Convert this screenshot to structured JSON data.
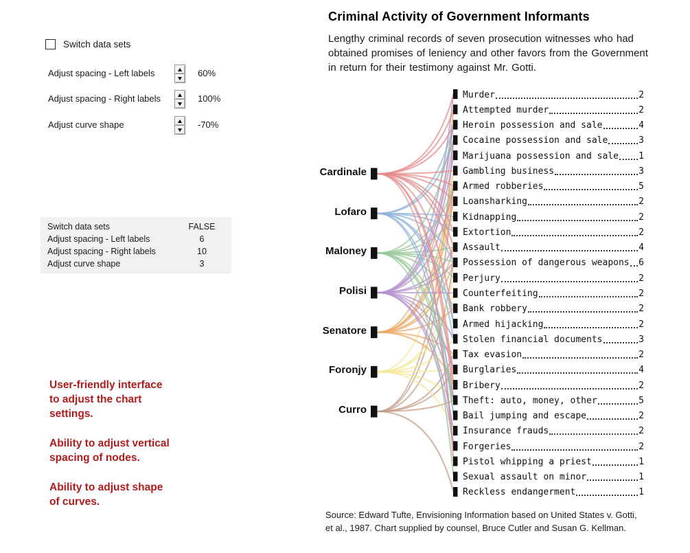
{
  "title": "Criminal Activity of Government Informants",
  "subtitle": "Lengthy criminal records of seven prosecution witnesses who had obtained promises of leniency and other favors from the Government in return for their testimony against Mr. Gotti.",
  "source_lines": [
    "Source: Edward Tufte, Envisioning Information based on United States v. Gotti,",
    "et al., 1987. Chart supplied by counsel, Bruce Cutler and Susan G. Kellman."
  ],
  "controls": {
    "checkbox_label": "Switch data sets",
    "checkbox_checked": false,
    "spinners": [
      {
        "label": "Adjust spacing - Left labels",
        "value": "60%"
      },
      {
        "label": "Adjust spacing - Right labels",
        "value": "100%"
      },
      {
        "label": "Adjust curve shape",
        "value": "-70%"
      }
    ]
  },
  "settings_table": {
    "rows": [
      {
        "label": "Switch data sets",
        "value": "FALSE"
      },
      {
        "label": "Adjust spacing - Left labels",
        "value": "6"
      },
      {
        "label": "Adjust spacing - Right labels",
        "value": "10"
      },
      {
        "label": "Adjust curve shape",
        "value": "3"
      }
    ]
  },
  "annotations": [
    "User-friendly interface to adjust the chart settings.",
    "Ability to adjust vertical spacing of nodes.",
    "Ability to adjust shape of curves."
  ],
  "chart_data": {
    "type": "bipartite-flow",
    "title": "Criminal Activity of Government Informants",
    "node_marker_color": "#111111",
    "witnesses": [
      {
        "name": "Cardinale",
        "color": "#e68989"
      },
      {
        "name": "Lofaro",
        "color": "#8fb4d9"
      },
      {
        "name": "Maloney",
        "color": "#98c897"
      },
      {
        "name": "Polisi",
        "color": "#b492cf"
      },
      {
        "name": "Senatore",
        "color": "#eda967"
      },
      {
        "name": "Foronjy",
        "color": "#f4e795"
      },
      {
        "name": "Curro",
        "color": "#c29b85"
      }
    ],
    "crimes": [
      {
        "name": "Murder",
        "count": 2,
        "witnesses": [
          "Cardinale",
          "Polisi"
        ]
      },
      {
        "name": "Attempted murder",
        "count": 2,
        "witnesses": [
          "Cardinale",
          "Senatore"
        ]
      },
      {
        "name": "Heroin possession and sale",
        "count": 4,
        "witnesses": [
          "Cardinale",
          "Lofaro",
          "Maloney",
          "Polisi"
        ]
      },
      {
        "name": "Cocaine possession and sale",
        "count": 3,
        "witnesses": [
          "Lofaro",
          "Polisi",
          "Curro"
        ]
      },
      {
        "name": "Marijuana possession and sale",
        "count": 1,
        "witnesses": [
          "Polisi"
        ]
      },
      {
        "name": "Gambling business",
        "count": 3,
        "witnesses": [
          "Cardinale",
          "Senatore",
          "Foronjy"
        ]
      },
      {
        "name": "Armed robberies",
        "count": 5,
        "witnesses": [
          "Cardinale",
          "Maloney",
          "Polisi",
          "Senatore",
          "Curro"
        ]
      },
      {
        "name": "Loansharking",
        "count": 2,
        "witnesses": [
          "Cardinale",
          "Senatore"
        ]
      },
      {
        "name": "Kidnapping",
        "count": 2,
        "witnesses": [
          "Lofaro",
          "Maloney"
        ]
      },
      {
        "name": "Extortion",
        "count": 2,
        "witnesses": [
          "Cardinale",
          "Lofaro"
        ]
      },
      {
        "name": "Assault",
        "count": 4,
        "witnesses": [
          "Cardinale",
          "Maloney",
          "Polisi",
          "Senatore"
        ]
      },
      {
        "name": "Possession of dangerous weapons",
        "count": 6,
        "witnesses": [
          "Cardinale",
          "Lofaro",
          "Maloney",
          "Polisi",
          "Senatore",
          "Curro"
        ]
      },
      {
        "name": "Perjury",
        "count": 2,
        "witnesses": [
          "Maloney",
          "Foronjy"
        ]
      },
      {
        "name": "Counterfeiting",
        "count": 2,
        "witnesses": [
          "Polisi",
          "Foronjy"
        ]
      },
      {
        "name": "Bank robbery",
        "count": 2,
        "witnesses": [
          "Maloney",
          "Senatore"
        ]
      },
      {
        "name": "Armed hijacking",
        "count": 2,
        "witnesses": [
          "Cardinale",
          "Lofaro"
        ]
      },
      {
        "name": "Stolen financial documents",
        "count": 3,
        "witnesses": [
          "Lofaro",
          "Polisi",
          "Foronjy"
        ]
      },
      {
        "name": "Tax evasion",
        "count": 2,
        "witnesses": [
          "Senatore",
          "Curro"
        ]
      },
      {
        "name": "Burglaries",
        "count": 4,
        "witnesses": [
          "Maloney",
          "Polisi",
          "Foronjy",
          "Curro"
        ]
      },
      {
        "name": "Bribery",
        "count": 2,
        "witnesses": [
          "Cardinale",
          "Senatore"
        ]
      },
      {
        "name": "Theft: auto, money, other",
        "count": 5,
        "witnesses": [
          "Cardinale",
          "Maloney",
          "Polisi",
          "Foronjy",
          "Curro"
        ]
      },
      {
        "name": "Bail jumping and escape",
        "count": 2,
        "witnesses": [
          "Lofaro",
          "Maloney"
        ]
      },
      {
        "name": "Insurance frauds",
        "count": 2,
        "witnesses": [
          "Polisi",
          "Foronjy"
        ]
      },
      {
        "name": "Forgeries",
        "count": 2,
        "witnesses": [
          "Lofaro",
          "Polisi"
        ]
      },
      {
        "name": "Pistol whipping a priest",
        "count": 1,
        "witnesses": [
          "Cardinale"
        ]
      },
      {
        "name": "Sexual assault on minor",
        "count": 1,
        "witnesses": [
          "Maloney"
        ]
      },
      {
        "name": "Reckless endangerment",
        "count": 1,
        "witnesses": [
          "Curro"
        ]
      }
    ]
  }
}
